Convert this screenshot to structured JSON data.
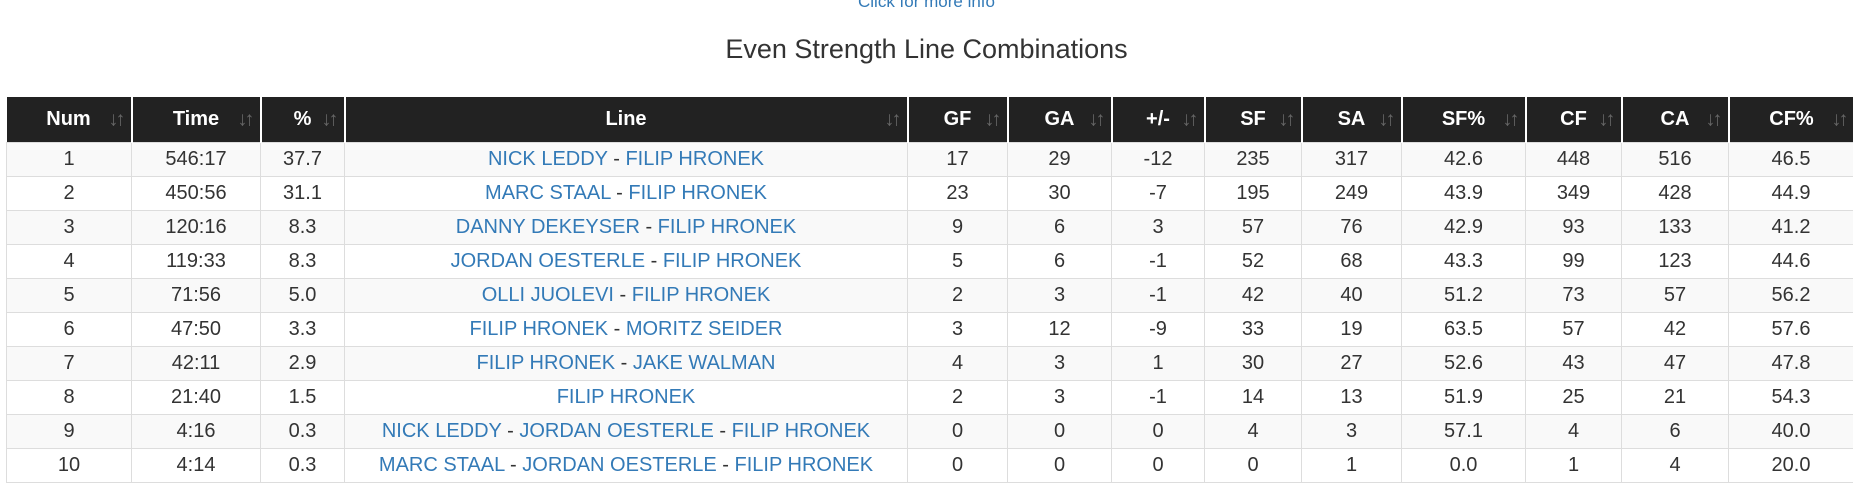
{
  "header": {
    "more_info": "Click for more info",
    "title": "Even Strength Line Combinations"
  },
  "icons": {
    "sort": "sort-arrows-icon"
  },
  "columns": [
    "Num",
    "Time",
    "%",
    "Line",
    "GF",
    "GA",
    "+/-",
    "SF",
    "SA",
    "SF%",
    "CF",
    "CA",
    "CF%"
  ],
  "rows": [
    {
      "num": "1",
      "time": "546:17",
      "pct": "37.7",
      "players": [
        "NICK LEDDY",
        "FILIP HRONEK"
      ],
      "gf": "17",
      "ga": "29",
      "pm": "-12",
      "sf": "235",
      "sa": "317",
      "sfp": "42.6",
      "cf": "448",
      "ca": "516",
      "cfp": "46.5"
    },
    {
      "num": "2",
      "time": "450:56",
      "pct": "31.1",
      "players": [
        "MARC STAAL",
        "FILIP HRONEK"
      ],
      "gf": "23",
      "ga": "30",
      "pm": "-7",
      "sf": "195",
      "sa": "249",
      "sfp": "43.9",
      "cf": "349",
      "ca": "428",
      "cfp": "44.9"
    },
    {
      "num": "3",
      "time": "120:16",
      "pct": "8.3",
      "players": [
        "DANNY DEKEYSER",
        "FILIP HRONEK"
      ],
      "gf": "9",
      "ga": "6",
      "pm": "3",
      "sf": "57",
      "sa": "76",
      "sfp": "42.9",
      "cf": "93",
      "ca": "133",
      "cfp": "41.2"
    },
    {
      "num": "4",
      "time": "119:33",
      "pct": "8.3",
      "players": [
        "JORDAN OESTERLE",
        "FILIP HRONEK"
      ],
      "gf": "5",
      "ga": "6",
      "pm": "-1",
      "sf": "52",
      "sa": "68",
      "sfp": "43.3",
      "cf": "99",
      "ca": "123",
      "cfp": "44.6"
    },
    {
      "num": "5",
      "time": "71:56",
      "pct": "5.0",
      "players": [
        "OLLI JUOLEVI",
        "FILIP HRONEK"
      ],
      "gf": "2",
      "ga": "3",
      "pm": "-1",
      "sf": "42",
      "sa": "40",
      "sfp": "51.2",
      "cf": "73",
      "ca": "57",
      "cfp": "56.2"
    },
    {
      "num": "6",
      "time": "47:50",
      "pct": "3.3",
      "players": [
        "FILIP HRONEK",
        "MORITZ SEIDER"
      ],
      "gf": "3",
      "ga": "12",
      "pm": "-9",
      "sf": "33",
      "sa": "19",
      "sfp": "63.5",
      "cf": "57",
      "ca": "42",
      "cfp": "57.6"
    },
    {
      "num": "7",
      "time": "42:11",
      "pct": "2.9",
      "players": [
        "FILIP HRONEK",
        "JAKE WALMAN"
      ],
      "gf": "4",
      "ga": "3",
      "pm": "1",
      "sf": "30",
      "sa": "27",
      "sfp": "52.6",
      "cf": "43",
      "ca": "47",
      "cfp": "47.8"
    },
    {
      "num": "8",
      "time": "21:40",
      "pct": "1.5",
      "players": [
        "FILIP HRONEK"
      ],
      "gf": "2",
      "ga": "3",
      "pm": "-1",
      "sf": "14",
      "sa": "13",
      "sfp": "51.9",
      "cf": "25",
      "ca": "21",
      "cfp": "54.3"
    },
    {
      "num": "9",
      "time": "4:16",
      "pct": "0.3",
      "players": [
        "NICK LEDDY",
        "JORDAN OESTERLE",
        "FILIP HRONEK"
      ],
      "gf": "0",
      "ga": "0",
      "pm": "0",
      "sf": "4",
      "sa": "3",
      "sfp": "57.1",
      "cf": "4",
      "ca": "6",
      "cfp": "40.0"
    },
    {
      "num": "10",
      "time": "4:14",
      "pct": "0.3",
      "players": [
        "MARC STAAL",
        "JORDAN OESTERLE",
        "FILIP HRONEK"
      ],
      "gf": "0",
      "ga": "0",
      "pm": "0",
      "sf": "0",
      "sa": "1",
      "sfp": "0.0",
      "cf": "1",
      "ca": "4",
      "cfp": "20.0"
    }
  ]
}
